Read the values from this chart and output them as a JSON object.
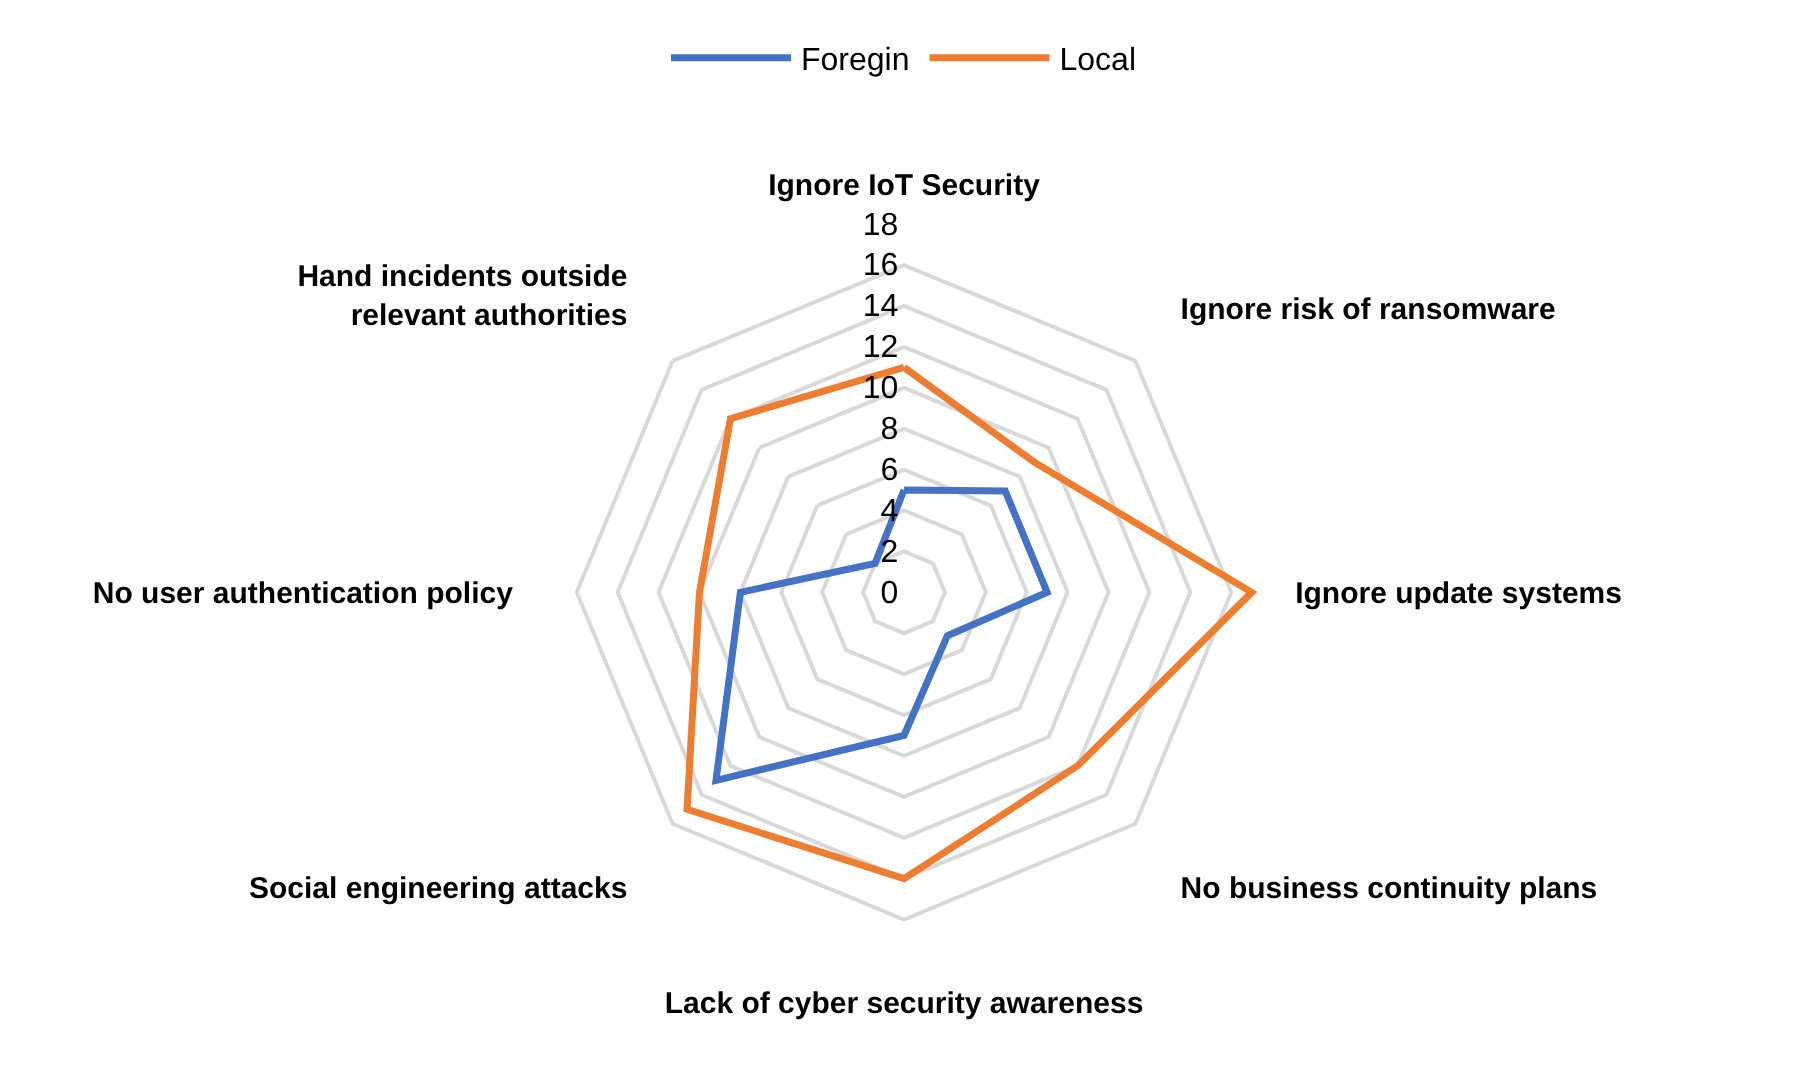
{
  "chart_data": {
    "type": "radar",
    "categories": [
      "Ignore IoT Security",
      "Ignore risk of ransomware",
      "Ignore update systems",
      "No business continuity plans",
      "Lack of cyber security awareness",
      "Social engineering attacks",
      "No user authentication policy",
      "Hand incidents outside relevant authorities"
    ],
    "series": [
      {
        "name": "Foregin",
        "color": "#4472c4",
        "values": [
          5,
          7,
          7,
          3,
          7,
          13,
          8,
          2
        ]
      },
      {
        "name": "Local",
        "color": "#ed7d31",
        "values": [
          11,
          9,
          17,
          12,
          14,
          15,
          10,
          12
        ]
      }
    ],
    "ylim": [
      0,
      18
    ],
    "yticks": [
      0,
      2,
      4,
      6,
      8,
      10,
      12,
      14,
      16,
      18
    ],
    "grid": true,
    "legend": "top",
    "marker": "none",
    "line_style": "solid"
  }
}
